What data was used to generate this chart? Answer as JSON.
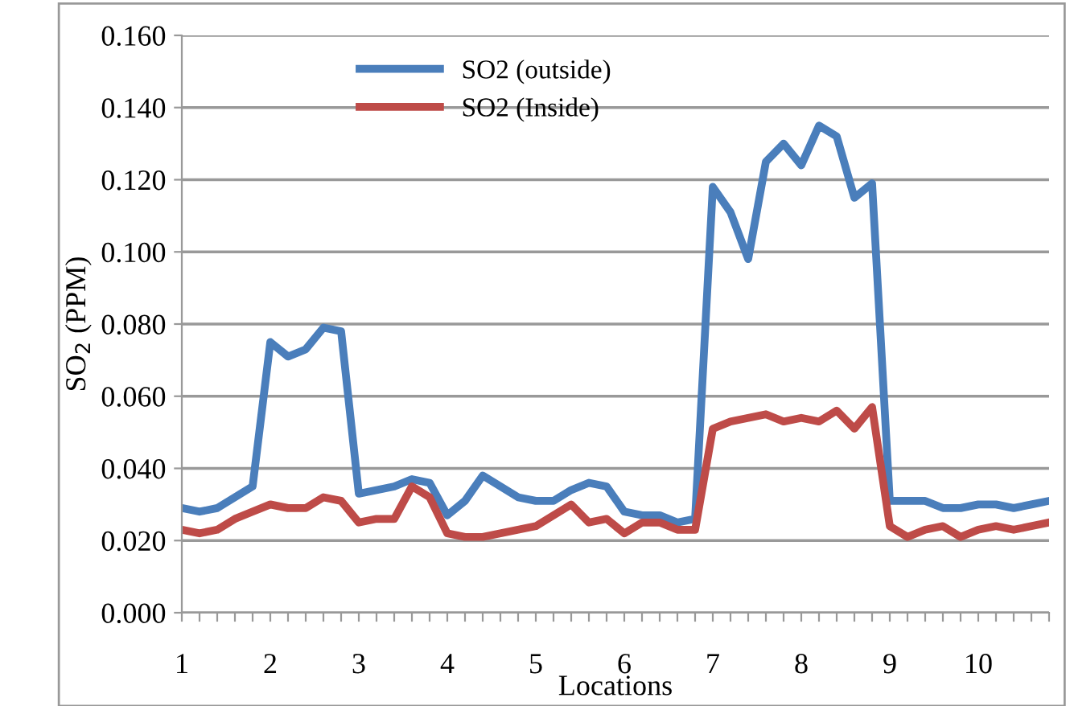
{
  "chart_data": {
    "type": "line",
    "xlabel": "Locations",
    "ylabel": "SO$_{2}$ (PPM)",
    "categories": [
      "1",
      null,
      null,
      null,
      null,
      "2",
      null,
      null,
      null,
      null,
      "3",
      null,
      null,
      null,
      null,
      "4",
      null,
      null,
      null,
      null,
      "5",
      null,
      null,
      null,
      null,
      "6",
      null,
      null,
      null,
      null,
      "7",
      null,
      null,
      null,
      null,
      "8",
      null,
      null,
      null,
      null,
      "9",
      null,
      null,
      null,
      null,
      "10",
      null,
      null,
      null,
      null
    ],
    "series": [
      {
        "name": "SO2 (outside)",
        "color": "#4a7ebb",
        "values": [
          0.029,
          0.028,
          0.029,
          0.032,
          0.035,
          0.075,
          0.071,
          0.073,
          0.079,
          0.078,
          0.033,
          0.034,
          0.035,
          0.037,
          0.036,
          0.027,
          0.031,
          0.038,
          0.035,
          0.032,
          0.031,
          0.031,
          0.034,
          0.036,
          0.035,
          0.028,
          0.027,
          0.027,
          0.025,
          0.026,
          0.118,
          0.111,
          0.098,
          0.125,
          0.13,
          0.124,
          0.135,
          0.132,
          0.115,
          0.119,
          0.031,
          0.031,
          0.031,
          0.029,
          0.029,
          0.03,
          0.03,
          0.029,
          0.03,
          0.031
        ]
      },
      {
        "name": "SO2 (Inside)",
        "color": "#be4b48",
        "values": [
          0.023,
          0.022,
          0.023,
          0.026,
          0.028,
          0.03,
          0.029,
          0.029,
          0.032,
          0.031,
          0.025,
          0.026,
          0.026,
          0.035,
          0.032,
          0.022,
          0.021,
          0.021,
          0.022,
          0.023,
          0.024,
          0.027,
          0.03,
          0.025,
          0.026,
          0.022,
          0.025,
          0.025,
          0.023,
          0.023,
          0.051,
          0.053,
          0.054,
          0.055,
          0.053,
          0.054,
          0.053,
          0.056,
          0.051,
          0.057,
          0.024,
          0.021,
          0.023,
          0.024,
          0.021,
          0.023,
          0.024,
          0.023,
          0.024,
          0.025
        ]
      }
    ],
    "ylim": [
      0,
      0.16
    ],
    "yticks": [
      {
        "value": 0,
        "label": "0.000"
      },
      {
        "value": 0.02,
        "label": "0.020"
      },
      {
        "value": 0.04,
        "label": "0.040"
      },
      {
        "value": 0.06,
        "label": "0.060"
      },
      {
        "value": 0.08,
        "label": "0.080"
      },
      {
        "value": 0.1,
        "label": "0.100"
      },
      {
        "value": 0.12,
        "label": "0.120"
      },
      {
        "value": 0.14,
        "label": "0.140"
      },
      {
        "value": 0.16,
        "label": "0.160"
      }
    ],
    "grid": "y",
    "legend": "top",
    "marker": "none",
    "line_style": "solid"
  }
}
